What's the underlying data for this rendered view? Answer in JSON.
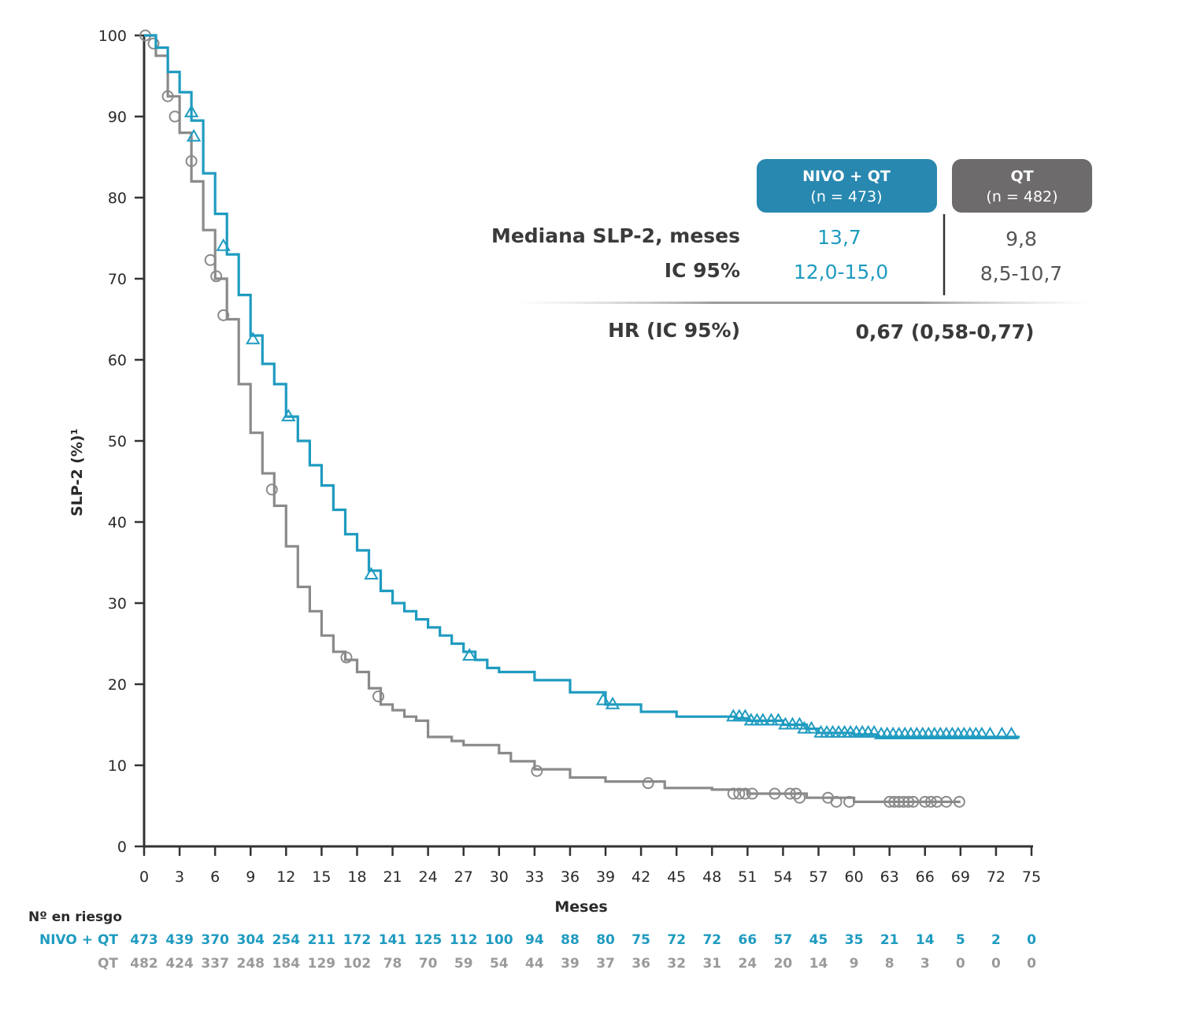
{
  "chart_data": {
    "type": "line",
    "title": "",
    "xlabel": "Meses",
    "ylabel": "SLP-2 (%)¹",
    "xlim": [
      0,
      75
    ],
    "ylim": [
      0,
      100
    ],
    "x_ticks": [
      0,
      3,
      6,
      9,
      12,
      15,
      18,
      21,
      24,
      27,
      30,
      33,
      36,
      39,
      42,
      45,
      48,
      51,
      54,
      57,
      60,
      63,
      66,
      69,
      72,
      75
    ],
    "y_ticks": [
      0,
      10,
      20,
      30,
      40,
      50,
      60,
      70,
      80,
      90,
      100
    ],
    "grid": false,
    "series": [
      {
        "name": "NIVO + QT",
        "color": "#1f9bc0",
        "marker": "triangle",
        "points": [
          [
            0,
            100
          ],
          [
            1,
            98.5
          ],
          [
            2,
            95.5
          ],
          [
            3,
            93
          ],
          [
            4,
            89.5
          ],
          [
            5,
            83
          ],
          [
            6,
            78
          ],
          [
            7,
            73
          ],
          [
            8,
            68
          ],
          [
            9,
            63
          ],
          [
            10,
            59.5
          ],
          [
            11,
            57
          ],
          [
            12,
            53
          ],
          [
            13,
            50
          ],
          [
            14,
            47
          ],
          [
            15,
            44.5
          ],
          [
            16,
            41.5
          ],
          [
            17,
            38.5
          ],
          [
            18,
            36.5
          ],
          [
            19,
            34
          ],
          [
            20,
            31.5
          ],
          [
            21,
            30
          ],
          [
            22,
            29
          ],
          [
            23,
            28
          ],
          [
            24,
            27
          ],
          [
            25,
            26
          ],
          [
            26,
            25
          ],
          [
            27,
            24
          ],
          [
            28,
            23
          ],
          [
            29,
            22
          ],
          [
            30,
            21.5
          ],
          [
            33,
            20.5
          ],
          [
            36,
            19
          ],
          [
            39,
            17.5
          ],
          [
            42,
            16.6
          ],
          [
            45,
            16
          ],
          [
            48,
            16
          ],
          [
            50,
            15.8
          ],
          [
            51,
            15.5
          ],
          [
            54,
            15
          ],
          [
            56,
            14.5
          ],
          [
            57,
            14
          ],
          [
            60,
            13.8
          ],
          [
            62,
            13.5
          ],
          [
            66,
            13.5
          ],
          [
            70,
            13.5
          ],
          [
            74,
            13.5
          ]
        ],
        "censors": [
          [
            4,
            90.5
          ],
          [
            4.2,
            87.5
          ],
          [
            6.7,
            74
          ],
          [
            9.2,
            62.5
          ],
          [
            12.2,
            53
          ],
          [
            19.2,
            33.5
          ],
          [
            27.5,
            23.5
          ],
          [
            38.8,
            18
          ],
          [
            39.6,
            17.5
          ],
          [
            49.8,
            16
          ],
          [
            50.3,
            16
          ],
          [
            50.8,
            16
          ],
          [
            51.3,
            15.5
          ],
          [
            51.8,
            15.5
          ],
          [
            52.3,
            15.5
          ],
          [
            53,
            15.5
          ],
          [
            53.6,
            15.5
          ],
          [
            54.2,
            15
          ],
          [
            54.8,
            15
          ],
          [
            55.4,
            15
          ],
          [
            55.8,
            14.5
          ],
          [
            56.4,
            14.5
          ],
          [
            57.2,
            14
          ],
          [
            57.7,
            14
          ],
          [
            58.2,
            14
          ],
          [
            58.7,
            14
          ],
          [
            59.2,
            14
          ],
          [
            59.7,
            14
          ],
          [
            60.2,
            14
          ],
          [
            60.7,
            14
          ],
          [
            61.2,
            14
          ],
          [
            61.7,
            14
          ],
          [
            62.3,
            13.8
          ],
          [
            62.8,
            13.8
          ],
          [
            63.3,
            13.8
          ],
          [
            63.8,
            13.8
          ],
          [
            64.3,
            13.8
          ],
          [
            64.8,
            13.8
          ],
          [
            65.3,
            13.8
          ],
          [
            65.8,
            13.8
          ],
          [
            66.3,
            13.8
          ],
          [
            66.8,
            13.8
          ],
          [
            67.3,
            13.8
          ],
          [
            67.8,
            13.8
          ],
          [
            68.3,
            13.8
          ],
          [
            68.8,
            13.8
          ],
          [
            69.3,
            13.8
          ],
          [
            69.8,
            13.8
          ],
          [
            70.3,
            13.8
          ],
          [
            70.8,
            13.8
          ],
          [
            71.5,
            13.8
          ],
          [
            72.5,
            13.8
          ],
          [
            73.3,
            13.8
          ]
        ]
      },
      {
        "name": "QT",
        "color": "#8a8a8a",
        "marker": "circle",
        "points": [
          [
            0,
            100
          ],
          [
            1,
            97.5
          ],
          [
            2,
            92.5
          ],
          [
            3,
            88
          ],
          [
            4,
            82
          ],
          [
            5,
            76
          ],
          [
            6,
            70
          ],
          [
            7,
            65
          ],
          [
            8,
            57
          ],
          [
            9,
            51
          ],
          [
            10,
            46
          ],
          [
            11,
            42
          ],
          [
            12,
            37
          ],
          [
            13,
            32
          ],
          [
            14,
            29
          ],
          [
            15,
            26
          ],
          [
            16,
            24
          ],
          [
            17,
            23
          ],
          [
            18,
            21.5
          ],
          [
            19,
            19.5
          ],
          [
            20,
            17.5
          ],
          [
            21,
            16.8
          ],
          [
            22,
            16
          ],
          [
            23,
            15.5
          ],
          [
            24,
            13.5
          ],
          [
            26,
            13
          ],
          [
            27,
            12.5
          ],
          [
            30,
            11.5
          ],
          [
            31,
            10.5
          ],
          [
            33,
            9.5
          ],
          [
            36,
            8.5
          ],
          [
            39,
            8
          ],
          [
            42,
            8
          ],
          [
            44,
            7.2
          ],
          [
            48,
            7
          ],
          [
            51,
            6.5
          ],
          [
            54,
            6.5
          ],
          [
            56,
            6
          ],
          [
            58,
            6
          ],
          [
            60,
            5.5
          ],
          [
            63,
            5.5
          ],
          [
            66,
            5.5
          ],
          [
            69,
            5.5
          ]
        ],
        "censors": [
          [
            0.1,
            100
          ],
          [
            0.8,
            99
          ],
          [
            2,
            92.5
          ],
          [
            2.6,
            90
          ],
          [
            4,
            84.5
          ],
          [
            5.6,
            72.3
          ],
          [
            6.1,
            70.3
          ],
          [
            6.7,
            65.5
          ],
          [
            10.8,
            44
          ],
          [
            17.1,
            23.3
          ],
          [
            19.8,
            18.5
          ],
          [
            33.2,
            9.3
          ],
          [
            42.6,
            7.8
          ],
          [
            49.8,
            6.5
          ],
          [
            50.3,
            6.5
          ],
          [
            50.8,
            6.5
          ],
          [
            51.4,
            6.5
          ],
          [
            53.3,
            6.5
          ],
          [
            54.6,
            6.5
          ],
          [
            55.1,
            6.5
          ],
          [
            55.4,
            6
          ],
          [
            57.8,
            6
          ],
          [
            58.5,
            5.5
          ],
          [
            59.6,
            5.5
          ],
          [
            63,
            5.5
          ],
          [
            63.4,
            5.5
          ],
          [
            63.8,
            5.5
          ],
          [
            64.2,
            5.5
          ],
          [
            64.6,
            5.5
          ],
          [
            65,
            5.5
          ],
          [
            66,
            5.5
          ],
          [
            66.5,
            5.5
          ],
          [
            67,
            5.5
          ],
          [
            67.8,
            5.5
          ],
          [
            68.9,
            5.5
          ]
        ]
      }
    ],
    "risk_table": {
      "header": "Nº en riesgo",
      "times": [
        0,
        3,
        6,
        9,
        12,
        15,
        18,
        21,
        24,
        27,
        30,
        33,
        36,
        39,
        42,
        45,
        48,
        51,
        54,
        57,
        60,
        63,
        66,
        69,
        72,
        75
      ],
      "rows": [
        {
          "label": "NIVO + QT",
          "color": "#1f9bc0",
          "values": [
            "473",
            "439",
            "370",
            "304",
            "254",
            "211",
            "172",
            "141",
            "125",
            "112",
            "100",
            "94",
            "88",
            "80",
            "75",
            "72",
            "72",
            "66",
            "57",
            "45",
            "35",
            "21",
            "14",
            "5",
            "2",
            "0"
          ]
        },
        {
          "label": "QT",
          "color": "#9a9a9a",
          "values": [
            "482",
            "424",
            "337",
            "248",
            "184",
            "129",
            "102",
            "78",
            "70",
            "59",
            "54",
            "44",
            "39",
            "37",
            "36",
            "32",
            "31",
            "24",
            "20",
            "14",
            "9",
            "8",
            "3",
            "0",
            "0",
            "0"
          ]
        }
      ]
    },
    "summary_table": {
      "columns": [
        {
          "name": "NIVO + QT",
          "n": "(n = 473)",
          "color": "#2888b0"
        },
        {
          "name": "QT",
          "n": "(n = 482)",
          "color": "#6e6b6c"
        }
      ],
      "rows": [
        {
          "label": "Mediana SLP-2, meses",
          "values": [
            "13,7",
            "9,8"
          ]
        },
        {
          "label": "IC 95%",
          "values": [
            "12,0-15,0",
            "8,5-10,7"
          ]
        }
      ],
      "hr_label": "HR (IC 95%)",
      "hr_value": "0,67 (0,58-0,77)"
    }
  }
}
